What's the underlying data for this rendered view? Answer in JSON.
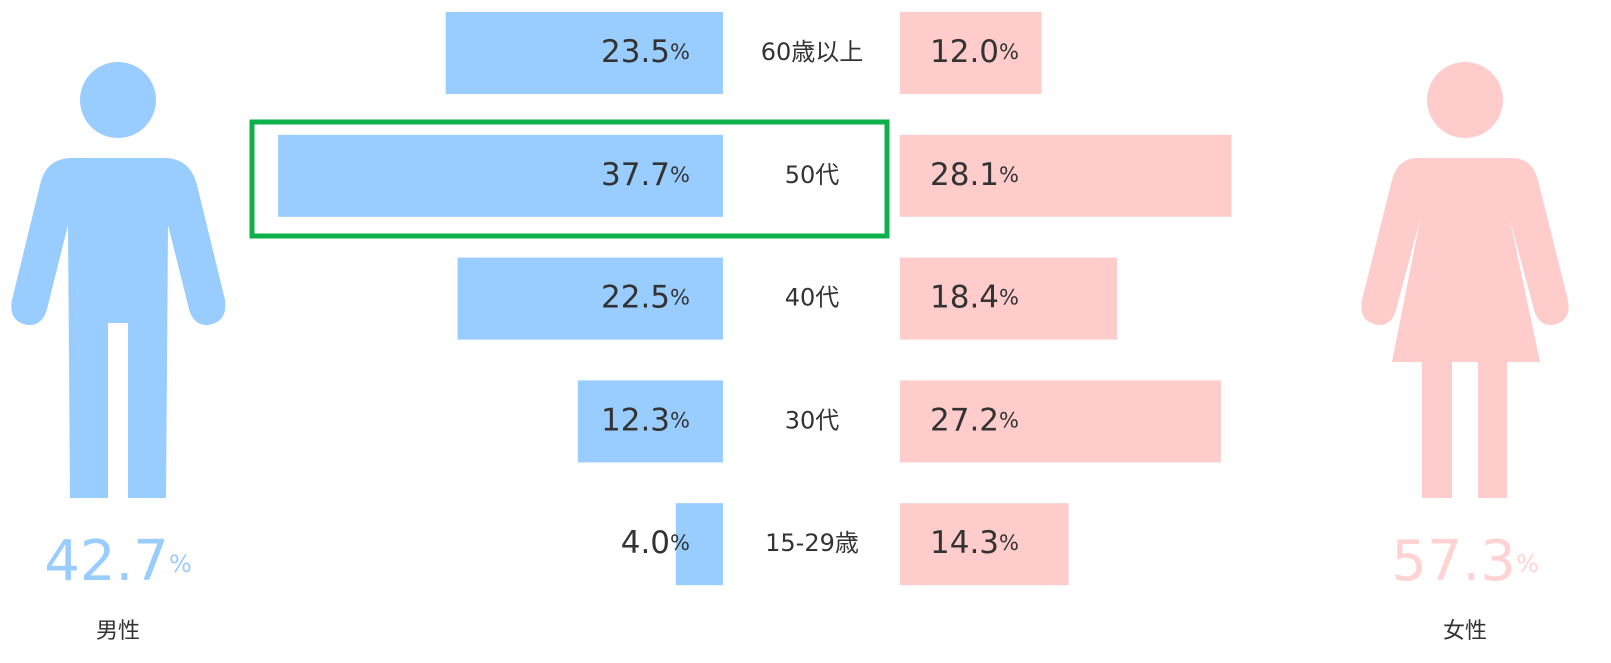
{
  "chart_data": {
    "type": "pyramid",
    "categories": [
      "60歳以上",
      "50代",
      "40代",
      "30代",
      "15-29歳"
    ],
    "unit": "%",
    "series": [
      {
        "name": "男性",
        "color": "#99ccff",
        "total": 42.7,
        "total_label": "42.7",
        "values": [
          23.5,
          37.7,
          22.5,
          12.3,
          4.0
        ],
        "value_labels": [
          "23.5",
          "37.7",
          "22.5",
          "12.3",
          "4.0"
        ]
      },
      {
        "name": "女性",
        "color": "#ffcccc",
        "total": 57.3,
        "total_label": "57.3",
        "values": [
          12.0,
          28.1,
          18.4,
          27.2,
          14.3
        ],
        "value_labels": [
          "12.0",
          "28.1",
          "18.4",
          "27.2",
          "14.3"
        ]
      }
    ]
  }
}
